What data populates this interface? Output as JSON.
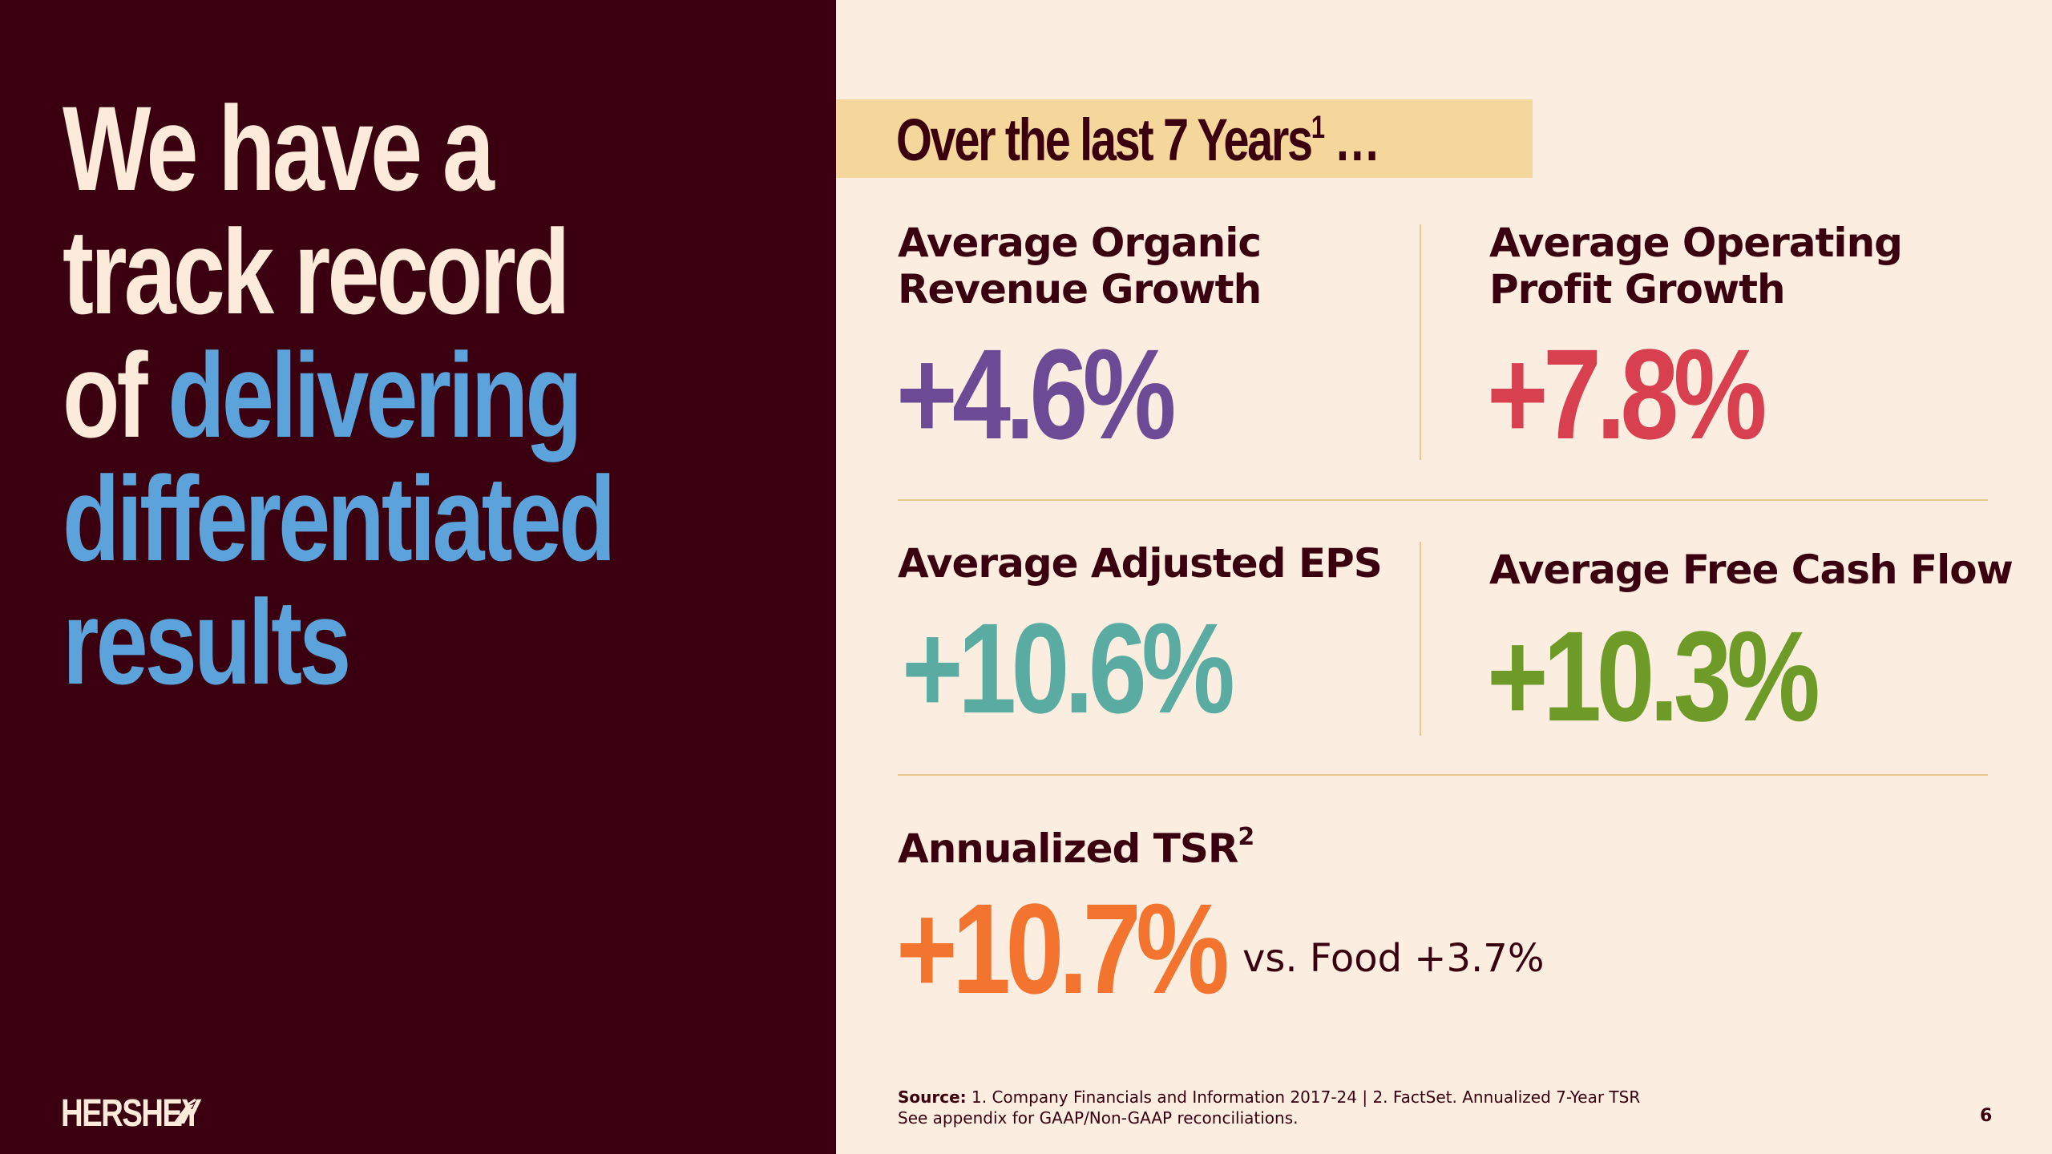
{
  "headline": {
    "line1": "We have a",
    "line2": "track record",
    "line3_plain": "of ",
    "line3_highlight": "delivering",
    "line4": "differentiated",
    "line5": "results"
  },
  "brand": {
    "logo_text": "HERSHEY"
  },
  "banner": {
    "text": "Over the last 7 Years",
    "sup": "1",
    "suffix": " …"
  },
  "metrics": [
    {
      "label": "Average Organic Revenue Growth",
      "label_line1": "Average Organic",
      "label_line2": "Revenue Growth",
      "value": "+4.6%",
      "color": "#6C4A96"
    },
    {
      "label": "Average Operating Profit Growth",
      "label_line1": "Average Operating",
      "label_line2": "Profit Growth",
      "value": "+7.8%",
      "color": "#D8404F"
    },
    {
      "label": "Average Adjusted EPS",
      "value": "+10.6%",
      "color": "#5AABA1"
    },
    {
      "label": "Average Free Cash Flow",
      "value": "+10.3%",
      "color": "#6E9A27"
    }
  ],
  "tsr": {
    "label": "Annualized TSR",
    "sup": "2",
    "value": "+10.7%",
    "comparison": "vs. Food +3.7%",
    "color": "#F2742F"
  },
  "footer": {
    "source_label": "Source:",
    "source_text": " 1. Company Financials and Information 2017-24  |  2. FactSet. Annualized 7-Year TSR",
    "note": "See appendix for GAAP/Non-GAAP reconciliations.",
    "page_number": "6"
  },
  "colors": {
    "maroon": "#3A0010",
    "cream": "#FBEDE0",
    "blue_highlight": "#5CA3DC",
    "banner": "#F5D69B"
  }
}
